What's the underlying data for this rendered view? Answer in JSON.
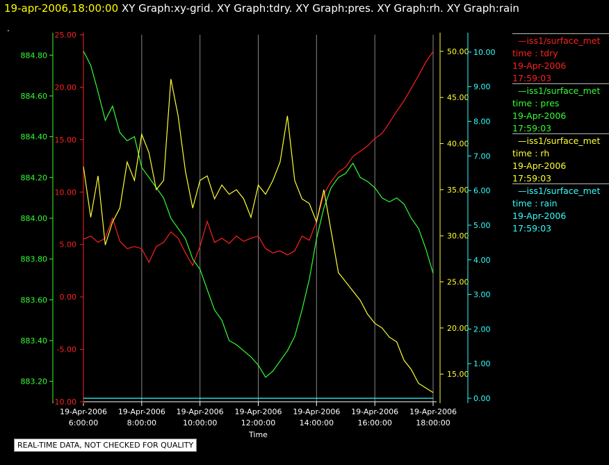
{
  "header": {
    "time": "19-apr-2006,18:00:00",
    "graphs": "XY Graph:xy-grid.  XY Graph:tdry.  XY Graph:pres.  XY Graph:rh.  XY Graph:rain",
    "dot": "."
  },
  "disclaimer": "REAL-TIME DATA, NOT CHECKED FOR QUALITY",
  "legend": [
    {
      "source": "iss1/surface_met",
      "var": "time : tdry",
      "date": "19-Apr-2006",
      "time": "17:59:03",
      "color": "#ff2020"
    },
    {
      "source": "iss1/surface_met",
      "var": "time : pres",
      "date": "19-Apr-2006",
      "time": "17:59:03",
      "color": "#33ff33"
    },
    {
      "source": "iss1/surface_met",
      "var": "time : rh",
      "date": "19-Apr-2006",
      "time": "17:59:03",
      "color": "#ffff33"
    },
    {
      "source": "iss1/surface_met",
      "var": "time : rain",
      "date": "19-Apr-2006",
      "time": "17:59:03",
      "color": "#33ffff"
    }
  ],
  "chart_data": {
    "type": "line",
    "xlabel": "Time",
    "x_ticks": [
      {
        "date": "19-Apr-2006",
        "time": "6:00:00"
      },
      {
        "date": "19-Apr-2006",
        "time": "8:00:00"
      },
      {
        "date": "19-Apr-2006",
        "time": "10:00:00"
      },
      {
        "date": "19-Apr-2006",
        "time": "12:00:00"
      },
      {
        "date": "19-Apr-2006",
        "time": "14:00:00"
      },
      {
        "date": "19-Apr-2006",
        "time": "16:00:00"
      },
      {
        "date": "19-Apr-2006",
        "time": "18:00:00"
      }
    ],
    "xlim_hours": [
      6,
      18
    ],
    "grid": "vertical",
    "axes": {
      "tdry": {
        "ylim": [
          -10,
          25
        ],
        "ticks": [
          "25.00",
          "20.00",
          "15.00",
          "10.00",
          "5.00",
          "0.00",
          "-5.00",
          "-10.00"
        ],
        "color": "#ff2020"
      },
      "pres": {
        "ylim": [
          883.1,
          884.9
        ],
        "ticks": [
          "884.80",
          "884.60",
          "884.40",
          "884.20",
          "884.00",
          "883.80",
          "883.60",
          "883.40",
          "883.20"
        ],
        "color": "#33ff33"
      },
      "rh": {
        "ylim": [
          12,
          51.8
        ],
        "ticks": [
          "50.00",
          "45.00",
          "40.00",
          "35.00",
          "30.00",
          "25.00",
          "20.00",
          "15.00"
        ],
        "color": "#ffff33"
      },
      "rain": {
        "ylim": [
          -0.1,
          10.5
        ],
        "ticks": [
          "10.00",
          "9.00",
          "8.00",
          "7.00",
          "6.00",
          "5.00",
          "4.00",
          "3.00",
          "2.00",
          "1.00",
          "0.00"
        ],
        "color": "#33ffff"
      }
    },
    "series": [
      {
        "key": "tdry",
        "x": [
          6.0,
          6.25,
          6.5,
          6.75,
          7.0,
          7.25,
          7.5,
          7.75,
          8.0,
          8.25,
          8.5,
          8.75,
          9.0,
          9.25,
          9.5,
          9.75,
          10.0,
          10.25,
          10.5,
          10.75,
          11.0,
          11.25,
          11.5,
          11.75,
          12.0,
          12.25,
          12.5,
          12.75,
          13.0,
          13.25,
          13.5,
          13.75,
          14.0,
          14.25,
          14.5,
          14.75,
          15.0,
          15.25,
          15.5,
          15.75,
          16.0,
          16.25,
          16.5,
          16.75,
          17.0,
          17.25,
          17.5,
          17.75,
          18.0
        ],
        "values": [
          5.5,
          5.8,
          5.2,
          5.6,
          7.5,
          5.3,
          4.6,
          4.8,
          4.6,
          3.3,
          4.8,
          5.2,
          6.2,
          5.6,
          4.2,
          3.0,
          4.8,
          7.2,
          5.2,
          5.6,
          5.1,
          5.8,
          5.3,
          5.6,
          5.8,
          4.6,
          4.2,
          4.4,
          4.0,
          4.4,
          5.8,
          5.4,
          7.2,
          9.8,
          11.0,
          11.9,
          12.4,
          13.4,
          13.9,
          14.4,
          15.1,
          15.6,
          16.6,
          17.7,
          18.7,
          19.9,
          21.1,
          22.4,
          23.4
        ]
      },
      {
        "key": "pres",
        "x": [
          6.0,
          6.25,
          6.5,
          6.75,
          7.0,
          7.25,
          7.5,
          7.75,
          8.0,
          8.25,
          8.5,
          8.75,
          9.0,
          9.25,
          9.5,
          9.75,
          10.0,
          10.25,
          10.5,
          10.75,
          11.0,
          11.25,
          11.5,
          11.75,
          12.0,
          12.25,
          12.5,
          12.75,
          13.0,
          13.25,
          13.5,
          13.75,
          14.0,
          14.25,
          14.5,
          14.75,
          15.0,
          15.25,
          15.5,
          15.75,
          16.0,
          16.25,
          16.5,
          16.75,
          17.0,
          17.25,
          17.5,
          17.75,
          18.0
        ],
        "values": [
          884.82,
          884.75,
          884.62,
          884.48,
          884.55,
          884.42,
          884.38,
          884.4,
          884.25,
          884.2,
          884.15,
          884.1,
          884.0,
          883.95,
          883.9,
          883.8,
          883.75,
          883.65,
          883.55,
          883.5,
          883.4,
          883.38,
          883.35,
          883.32,
          883.28,
          883.22,
          883.25,
          883.3,
          883.35,
          883.42,
          883.55,
          883.7,
          883.9,
          884.05,
          884.15,
          884.2,
          884.22,
          884.27,
          884.2,
          884.18,
          884.15,
          884.1,
          884.08,
          884.1,
          884.07,
          884.0,
          883.95,
          883.85,
          883.73
        ]
      },
      {
        "key": "rh",
        "x": [
          6.0,
          6.25,
          6.5,
          6.75,
          7.0,
          7.25,
          7.5,
          7.75,
          8.0,
          8.25,
          8.5,
          8.75,
          9.0,
          9.25,
          9.5,
          9.75,
          10.0,
          10.25,
          10.5,
          10.75,
          11.0,
          11.25,
          11.5,
          11.75,
          12.0,
          12.25,
          12.5,
          12.75,
          13.0,
          13.25,
          13.5,
          13.75,
          14.0,
          14.25,
          14.5,
          14.75,
          15.0,
          15.25,
          15.5,
          15.75,
          16.0,
          16.25,
          16.5,
          16.75,
          17.0,
          17.25,
          17.5,
          17.75,
          18.0
        ],
        "values": [
          37.5,
          32.0,
          36.5,
          29.0,
          31.5,
          33.0,
          38.0,
          36.0,
          41.0,
          39.0,
          35.0,
          36.0,
          47.0,
          43.0,
          37.0,
          33.0,
          36.0,
          36.5,
          34.0,
          35.5,
          34.5,
          35.0,
          34.0,
          32.0,
          35.5,
          34.5,
          36.0,
          38.0,
          43.0,
          36.0,
          34.0,
          33.5,
          31.5,
          35.0,
          30.5,
          26.0,
          25.0,
          24.0,
          23.0,
          21.5,
          20.5,
          20.0,
          19.0,
          18.5,
          16.5,
          15.5,
          14.0,
          13.5,
          13.0
        ]
      },
      {
        "key": "rain",
        "x": [
          6.0,
          18.0
        ],
        "values": [
          0.0,
          0.0
        ]
      }
    ]
  }
}
